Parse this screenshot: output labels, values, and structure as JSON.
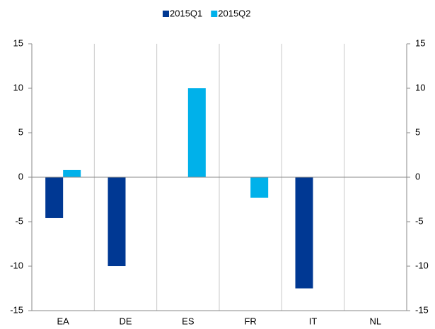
{
  "chart_data": {
    "type": "bar",
    "categories": [
      "EA",
      "DE",
      "ES",
      "FR",
      "IT",
      "NL"
    ],
    "series": [
      {
        "name": "2015Q1",
        "color": "#003893",
        "values": [
          -4.6,
          -10,
          null,
          null,
          -12.5,
          null
        ]
      },
      {
        "name": "2015Q2",
        "color": "#00b1ea",
        "values": [
          0.8,
          null,
          10,
          -2.3,
          null,
          null
        ]
      }
    ],
    "ylim": [
      -15,
      15
    ],
    "yticks": [
      -15,
      -10,
      -5,
      0,
      5,
      10,
      15
    ],
    "y2lim": [
      -15,
      15
    ],
    "y2ticks": [
      -15,
      -10,
      -5,
      0,
      5,
      10,
      15
    ],
    "grid": true,
    "legend": "top"
  }
}
